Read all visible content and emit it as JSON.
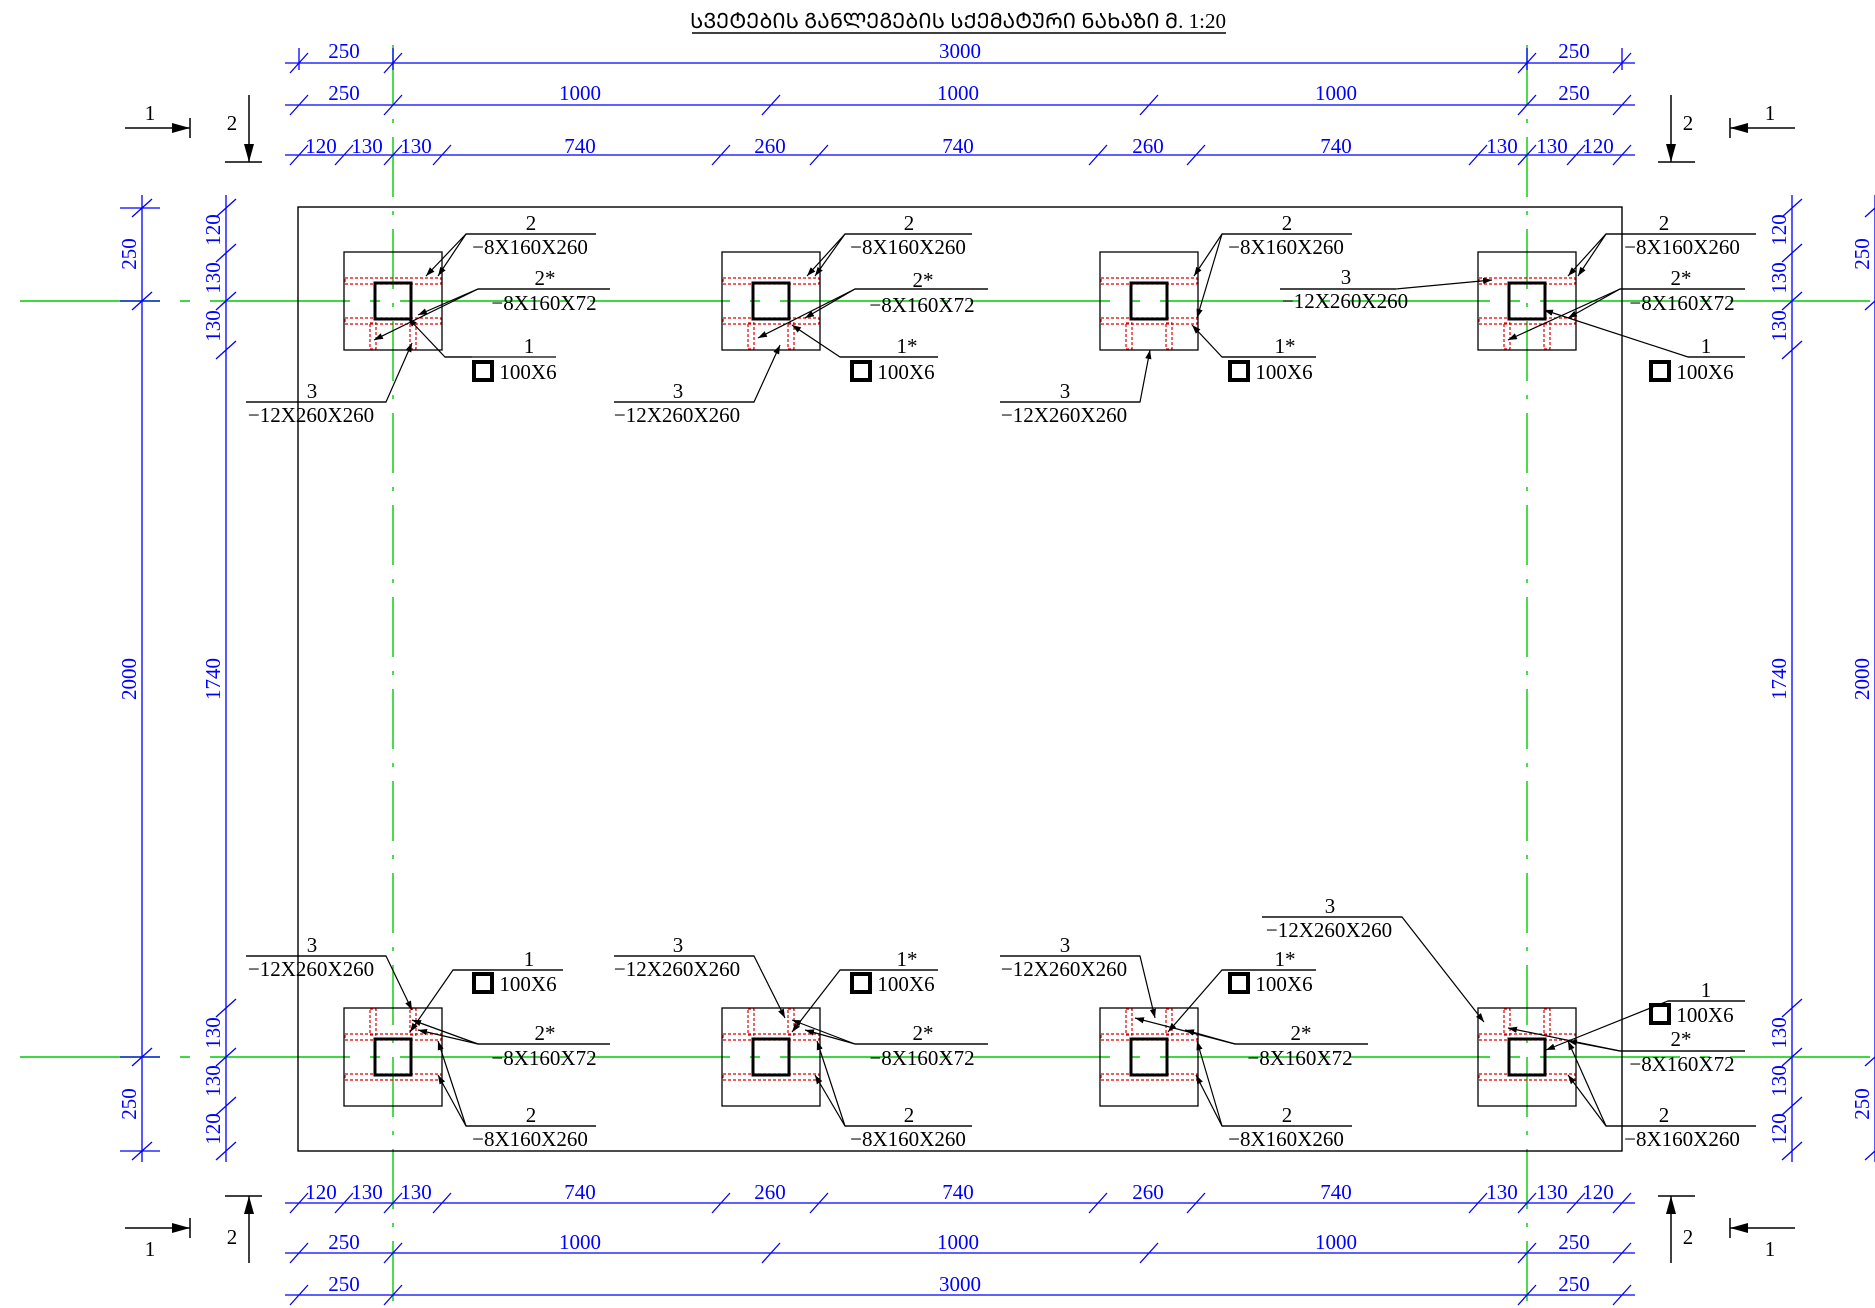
{
  "title": "ᲡᲕᲔᲢᲔᲑᲘᲡ ᲒᲐᲜᲚᲔᲒᲔᲑᲘᲡ ᲡᲥᲔᲛᲐᲢᲣᲠᲘ ᲜᲐᲮᲐᲖᲘ Მ. 1:20",
  "colors": {
    "dimension": "#0000ff",
    "axis": "#00cc00",
    "weld": "#dd0000",
    "outline": "#000000"
  },
  "dimensions": {
    "overall": [
      "250",
      "3000",
      "250"
    ],
    "spans": [
      "250",
      "1000",
      "1000",
      "1000",
      "250"
    ],
    "details": [
      "120",
      "130",
      "130",
      "740",
      "260",
      "740",
      "260",
      "740",
      "130",
      "130",
      "120"
    ],
    "vertical_outer": [
      "250",
      "2000",
      "250"
    ],
    "vertical_inner": [
      "120",
      "130",
      "130",
      "1740",
      "130",
      "130",
      "120"
    ]
  },
  "section_marks": {
    "section_1": "1",
    "section_2": "2"
  },
  "labels": {
    "a": "1",
    "a_star": "1*",
    "b": "2",
    "b_star": "2*",
    "c": "3",
    "profile_tube": "100X6",
    "plate_260": "−8X160X260",
    "plate_72": "−8X160X72",
    "plate_base": "−12X260X260"
  }
}
